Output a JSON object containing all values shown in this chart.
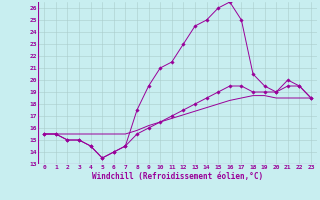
{
  "bg_color": "#c8eef0",
  "grid_color": "#aacccc",
  "line_color": "#990099",
  "xlim": [
    -0.5,
    23.5
  ],
  "ylim": [
    13,
    26.5
  ],
  "xticks": [
    0,
    1,
    2,
    3,
    4,
    5,
    6,
    7,
    8,
    9,
    10,
    11,
    12,
    13,
    14,
    15,
    16,
    17,
    18,
    19,
    20,
    21,
    22,
    23
  ],
  "yticks": [
    13,
    14,
    15,
    16,
    17,
    18,
    19,
    20,
    21,
    22,
    23,
    24,
    25,
    26
  ],
  "xlabel": "Windchill (Refroidissement éolien,°C)",
  "line1_x": [
    0,
    1,
    2,
    3,
    4,
    5,
    6,
    7,
    8,
    9,
    10,
    11,
    12,
    13,
    14,
    15,
    16,
    17,
    18,
    19,
    20,
    21,
    22,
    23
  ],
  "line1_y": [
    15.5,
    15.5,
    15.0,
    15.0,
    14.5,
    13.5,
    14.0,
    14.5,
    17.5,
    19.5,
    21.0,
    21.5,
    23.0,
    24.5,
    25.0,
    26.0,
    26.5,
    25.0,
    20.5,
    19.5,
    19.0,
    20.0,
    19.5,
    18.5
  ],
  "line2_x": [
    0,
    1,
    2,
    3,
    4,
    5,
    6,
    7,
    8,
    9,
    10,
    11,
    12,
    13,
    14,
    15,
    16,
    17,
    18,
    19,
    20,
    21,
    22,
    23
  ],
  "line2_y": [
    15.5,
    15.5,
    15.0,
    15.0,
    14.5,
    13.5,
    14.0,
    14.5,
    15.5,
    16.0,
    16.5,
    17.0,
    17.5,
    18.0,
    18.5,
    19.0,
    19.5,
    19.5,
    19.0,
    19.0,
    19.0,
    19.5,
    19.5,
    18.5
  ],
  "line3_x": [
    0,
    1,
    2,
    3,
    4,
    5,
    6,
    7,
    8,
    9,
    10,
    11,
    12,
    13,
    14,
    15,
    16,
    17,
    18,
    19,
    20,
    21,
    22,
    23
  ],
  "line3_y": [
    15.5,
    15.5,
    15.5,
    15.5,
    15.5,
    15.5,
    15.5,
    15.5,
    15.8,
    16.2,
    16.5,
    16.8,
    17.1,
    17.4,
    17.7,
    18.0,
    18.3,
    18.5,
    18.7,
    18.7,
    18.5,
    18.5,
    18.5,
    18.5
  ],
  "tick_fontsize": 4.5,
  "xlabel_fontsize": 5.5,
  "marker_size": 1.8,
  "line_width": 0.7
}
